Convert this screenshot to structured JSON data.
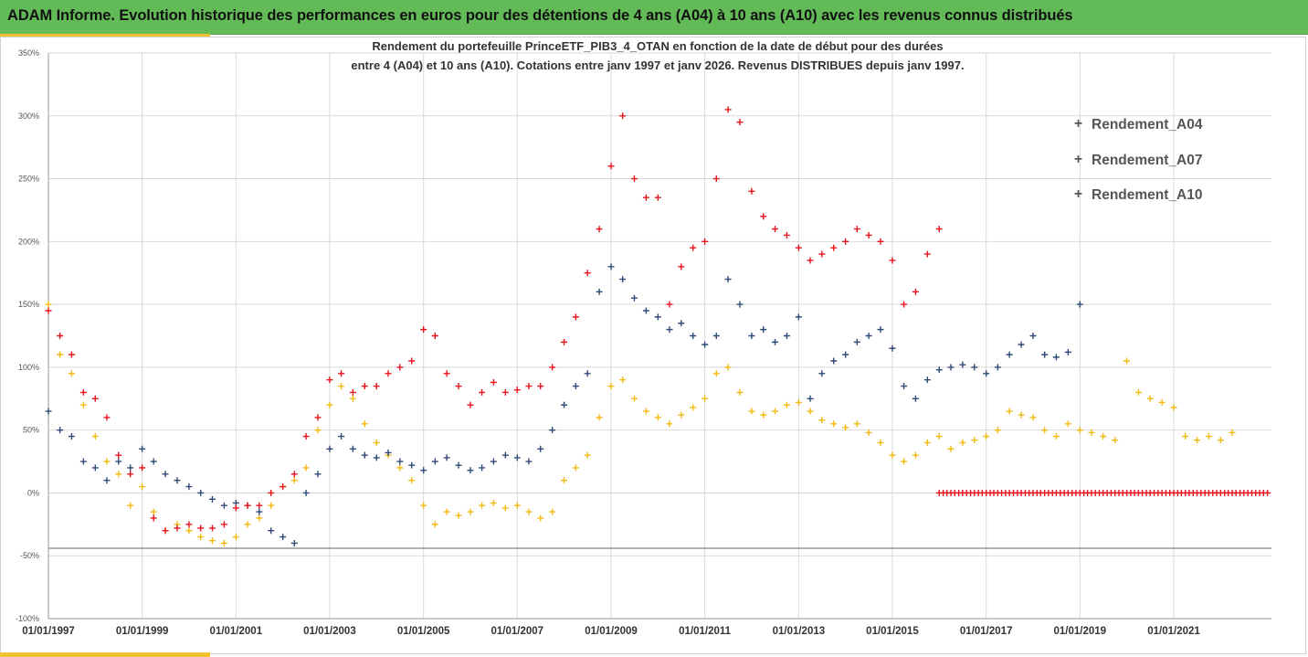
{
  "header": {
    "title": "ADAM Informe. Evolution historique des performances en euros pour des détentions de 4 ans (A04) à 10 ans (A10) avec les revenus connus distribués"
  },
  "colors": {
    "header_bg": "#63bb58",
    "accent": "#f2c12e",
    "A04": "#f2b90f",
    "A07": "#2e4a78",
    "A10": "#e8121c"
  },
  "chart_data": {
    "type": "scatter",
    "title_line1": "Rendement du portefeuille PrinceETF_PIB3_4_OTAN  en fonction de la date de début pour des durées",
    "title_line2": "entre 4 (A04) et 10 ans (A10). Cotations entre janv 1997 et janv 2026. Revenus DISTRIBUES depuis janv 1997.",
    "marker": "+",
    "grid": true,
    "legend_position": "top-right",
    "x_range": [
      "1997-01-01",
      "2023-02-01"
    ],
    "x_ticks": [
      "01/01/1997",
      "01/01/1999",
      "01/01/2001",
      "01/01/2003",
      "01/01/2005",
      "01/01/2007",
      "01/01/2009",
      "01/01/2011",
      "01/01/2013",
      "01/01/2015",
      "01/01/2017",
      "01/01/2019",
      "01/01/2021"
    ],
    "y_range": [
      -100,
      350
    ],
    "y_ticks": [
      "-100%",
      "-50%",
      "0%",
      "50%",
      "100%",
      "150%",
      "200%",
      "250%",
      "300%",
      "350%"
    ],
    "y_tick_values": [
      -100,
      -50,
      0,
      50,
      100,
      150,
      200,
      250,
      300,
      350
    ],
    "reference_line_y": -44,
    "series": [
      {
        "name": "Rendement_A04",
        "color": "#f2b90f",
        "points": [
          [
            "1997-01",
            150
          ],
          [
            "1997-04",
            110
          ],
          [
            "1997-07",
            95
          ],
          [
            "1997-10",
            70
          ],
          [
            "1998-01",
            45
          ],
          [
            "1998-04",
            25
          ],
          [
            "1998-07",
            15
          ],
          [
            "1998-10",
            -10
          ],
          [
            "1999-01",
            5
          ],
          [
            "1999-04",
            -15
          ],
          [
            "1999-07",
            -30
          ],
          [
            "1999-10",
            -25
          ],
          [
            "2000-01",
            -30
          ],
          [
            "2000-04",
            -35
          ],
          [
            "2000-07",
            -38
          ],
          [
            "2000-10",
            -40
          ],
          [
            "2001-01",
            -35
          ],
          [
            "2001-04",
            -25
          ],
          [
            "2001-07",
            -20
          ],
          [
            "2001-10",
            -10
          ],
          [
            "2002-01",
            5
          ],
          [
            "2002-04",
            10
          ],
          [
            "2002-07",
            20
          ],
          [
            "2002-10",
            50
          ],
          [
            "2003-01",
            70
          ],
          [
            "2003-04",
            85
          ],
          [
            "2003-07",
            75
          ],
          [
            "2003-10",
            55
          ],
          [
            "2004-01",
            40
          ],
          [
            "2004-04",
            30
          ],
          [
            "2004-07",
            20
          ],
          [
            "2004-10",
            10
          ],
          [
            "2005-01",
            -10
          ],
          [
            "2005-04",
            -25
          ],
          [
            "2005-07",
            -15
          ],
          [
            "2005-10",
            -18
          ],
          [
            "2006-01",
            -15
          ],
          [
            "2006-04",
            -10
          ],
          [
            "2006-07",
            -8
          ],
          [
            "2006-10",
            -12
          ],
          [
            "2007-01",
            -10
          ],
          [
            "2007-04",
            -15
          ],
          [
            "2007-07",
            -20
          ],
          [
            "2007-10",
            -15
          ],
          [
            "2008-01",
            10
          ],
          [
            "2008-04",
            20
          ],
          [
            "2008-07",
            30
          ],
          [
            "2008-10",
            60
          ],
          [
            "2009-01",
            85
          ],
          [
            "2009-04",
            90
          ],
          [
            "2009-07",
            75
          ],
          [
            "2009-10",
            65
          ],
          [
            "2010-01",
            60
          ],
          [
            "2010-04",
            55
          ],
          [
            "2010-07",
            62
          ],
          [
            "2010-10",
            68
          ],
          [
            "2011-01",
            75
          ],
          [
            "2011-04",
            95
          ],
          [
            "2011-07",
            100
          ],
          [
            "2011-10",
            80
          ],
          [
            "2012-01",
            65
          ],
          [
            "2012-04",
            62
          ],
          [
            "2012-07",
            65
          ],
          [
            "2012-10",
            70
          ],
          [
            "2013-01",
            72
          ],
          [
            "2013-04",
            65
          ],
          [
            "2013-07",
            58
          ],
          [
            "2013-10",
            55
          ],
          [
            "2014-01",
            52
          ],
          [
            "2014-04",
            55
          ],
          [
            "2014-07",
            48
          ],
          [
            "2014-10",
            40
          ],
          [
            "2015-01",
            30
          ],
          [
            "2015-04",
            25
          ],
          [
            "2015-07",
            30
          ],
          [
            "2015-10",
            40
          ],
          [
            "2016-01",
            45
          ],
          [
            "2016-04",
            35
          ],
          [
            "2016-07",
            40
          ],
          [
            "2016-10",
            42
          ],
          [
            "2017-01",
            45
          ],
          [
            "2017-04",
            50
          ],
          [
            "2017-07",
            65
          ],
          [
            "2017-10",
            62
          ],
          [
            "2018-01",
            60
          ],
          [
            "2018-04",
            50
          ],
          [
            "2018-07",
            45
          ],
          [
            "2018-10",
            55
          ],
          [
            "2019-01",
            50
          ],
          [
            "2019-04",
            48
          ],
          [
            "2019-07",
            45
          ],
          [
            "2019-10",
            42
          ],
          [
            "2020-01",
            105
          ],
          [
            "2020-04",
            80
          ],
          [
            "2020-07",
            75
          ],
          [
            "2020-10",
            72
          ],
          [
            "2021-01",
            68
          ],
          [
            "2021-04",
            45
          ],
          [
            "2021-07",
            42
          ],
          [
            "2021-10",
            45
          ],
          [
            "2022-01",
            42
          ],
          [
            "2022-04",
            48
          ]
        ]
      },
      {
        "name": "Rendement_A07",
        "color": "#2e4a78",
        "points": [
          [
            "1997-01",
            65
          ],
          [
            "1997-04",
            50
          ],
          [
            "1997-07",
            45
          ],
          [
            "1997-10",
            25
          ],
          [
            "1998-01",
            20
          ],
          [
            "1998-04",
            10
          ],
          [
            "1998-07",
            25
          ],
          [
            "1998-10",
            20
          ],
          [
            "1999-01",
            35
          ],
          [
            "1999-04",
            25
          ],
          [
            "1999-07",
            15
          ],
          [
            "1999-10",
            10
          ],
          [
            "2000-01",
            5
          ],
          [
            "2000-04",
            0
          ],
          [
            "2000-07",
            -5
          ],
          [
            "2000-10",
            -10
          ],
          [
            "2001-01",
            -8
          ],
          [
            "2001-04",
            -10
          ],
          [
            "2001-07",
            -15
          ],
          [
            "2001-10",
            -30
          ],
          [
            "2002-01",
            -35
          ],
          [
            "2002-04",
            -40
          ],
          [
            "2002-07",
            0
          ],
          [
            "2002-10",
            15
          ],
          [
            "2003-01",
            35
          ],
          [
            "2003-04",
            45
          ],
          [
            "2003-07",
            35
          ],
          [
            "2003-10",
            30
          ],
          [
            "2004-01",
            28
          ],
          [
            "2004-04",
            32
          ],
          [
            "2004-07",
            25
          ],
          [
            "2004-10",
            22
          ],
          [
            "2005-01",
            18
          ],
          [
            "2005-04",
            25
          ],
          [
            "2005-07",
            28
          ],
          [
            "2005-10",
            22
          ],
          [
            "2006-01",
            18
          ],
          [
            "2006-04",
            20
          ],
          [
            "2006-07",
            25
          ],
          [
            "2006-10",
            30
          ],
          [
            "2007-01",
            28
          ],
          [
            "2007-04",
            25
          ],
          [
            "2007-07",
            35
          ],
          [
            "2007-10",
            50
          ],
          [
            "2008-01",
            70
          ],
          [
            "2008-04",
            85
          ],
          [
            "2008-07",
            95
          ],
          [
            "2008-10",
            160
          ],
          [
            "2009-01",
            180
          ],
          [
            "2009-04",
            170
          ],
          [
            "2009-07",
            155
          ],
          [
            "2009-10",
            145
          ],
          [
            "2010-01",
            140
          ],
          [
            "2010-04",
            130
          ],
          [
            "2010-07",
            135
          ],
          [
            "2010-10",
            125
          ],
          [
            "2011-01",
            118
          ],
          [
            "2011-04",
            125
          ],
          [
            "2011-07",
            170
          ],
          [
            "2011-10",
            150
          ],
          [
            "2012-01",
            125
          ],
          [
            "2012-04",
            130
          ],
          [
            "2012-07",
            120
          ],
          [
            "2012-10",
            125
          ],
          [
            "2013-01",
            140
          ],
          [
            "2013-04",
            75
          ],
          [
            "2013-07",
            95
          ],
          [
            "2013-10",
            105
          ],
          [
            "2014-01",
            110
          ],
          [
            "2014-04",
            120
          ],
          [
            "2014-07",
            125
          ],
          [
            "2014-10",
            130
          ],
          [
            "2015-01",
            115
          ],
          [
            "2015-04",
            85
          ],
          [
            "2015-07",
            75
          ],
          [
            "2015-10",
            90
          ],
          [
            "2016-01",
            98
          ],
          [
            "2016-04",
            100
          ],
          [
            "2016-07",
            102
          ],
          [
            "2016-10",
            100
          ],
          [
            "2017-01",
            95
          ],
          [
            "2017-04",
            100
          ],
          [
            "2017-07",
            110
          ],
          [
            "2017-10",
            118
          ],
          [
            "2018-01",
            125
          ],
          [
            "2018-04",
            110
          ],
          [
            "2018-07",
            108
          ],
          [
            "2018-10",
            112
          ],
          [
            "2019-01",
            150
          ]
        ]
      },
      {
        "name": "Rendement_A10",
        "color": "#e8121c",
        "points": [
          [
            "1997-01",
            145
          ],
          [
            "1997-04",
            125
          ],
          [
            "1997-07",
            110
          ],
          [
            "1997-10",
            80
          ],
          [
            "1998-01",
            75
          ],
          [
            "1998-04",
            60
          ],
          [
            "1998-07",
            30
          ],
          [
            "1998-10",
            15
          ],
          [
            "1999-01",
            20
          ],
          [
            "1999-04",
            -20
          ],
          [
            "1999-07",
            -30
          ],
          [
            "1999-10",
            -28
          ],
          [
            "2000-01",
            -25
          ],
          [
            "2000-04",
            -28
          ],
          [
            "2000-07",
            -28
          ],
          [
            "2000-10",
            -25
          ],
          [
            "2001-01",
            -12
          ],
          [
            "2001-04",
            -10
          ],
          [
            "2001-07",
            -10
          ],
          [
            "2001-10",
            0
          ],
          [
            "2002-01",
            5
          ],
          [
            "2002-04",
            15
          ],
          [
            "2002-07",
            45
          ],
          [
            "2002-10",
            60
          ],
          [
            "2003-01",
            90
          ],
          [
            "2003-04",
            95
          ],
          [
            "2003-07",
            80
          ],
          [
            "2003-10",
            85
          ],
          [
            "2004-01",
            85
          ],
          [
            "2004-04",
            95
          ],
          [
            "2004-07",
            100
          ],
          [
            "2004-10",
            105
          ],
          [
            "2005-01",
            130
          ],
          [
            "2005-04",
            125
          ],
          [
            "2005-07",
            95
          ],
          [
            "2005-10",
            85
          ],
          [
            "2006-01",
            70
          ],
          [
            "2006-04",
            80
          ],
          [
            "2006-07",
            88
          ],
          [
            "2006-10",
            80
          ],
          [
            "2007-01",
            82
          ],
          [
            "2007-04",
            85
          ],
          [
            "2007-07",
            85
          ],
          [
            "2007-10",
            100
          ],
          [
            "2008-01",
            120
          ],
          [
            "2008-04",
            140
          ],
          [
            "2008-07",
            175
          ],
          [
            "2008-10",
            210
          ],
          [
            "2009-01",
            260
          ],
          [
            "2009-04",
            300
          ],
          [
            "2009-07",
            250
          ],
          [
            "2009-10",
            235
          ],
          [
            "2010-01",
            235
          ],
          [
            "2010-04",
            150
          ],
          [
            "2010-07",
            180
          ],
          [
            "2010-10",
            195
          ],
          [
            "2011-01",
            200
          ],
          [
            "2011-04",
            250
          ],
          [
            "2011-07",
            305
          ],
          [
            "2011-10",
            295
          ],
          [
            "2012-01",
            240
          ],
          [
            "2012-04",
            220
          ],
          [
            "2012-07",
            210
          ],
          [
            "2012-10",
            205
          ],
          [
            "2013-01",
            195
          ],
          [
            "2013-04",
            185
          ],
          [
            "2013-07",
            190
          ],
          [
            "2013-10",
            195
          ],
          [
            "2014-01",
            200
          ],
          [
            "2014-04",
            210
          ],
          [
            "2014-07",
            205
          ],
          [
            "2014-10",
            200
          ],
          [
            "2015-01",
            185
          ],
          [
            "2015-04",
            150
          ],
          [
            "2015-07",
            160
          ],
          [
            "2015-10",
            190
          ],
          [
            "2016-01",
            210
          ]
        ]
      }
    ],
    "zero_run_start": "2016-01",
    "zero_run_end": "2023-01"
  }
}
